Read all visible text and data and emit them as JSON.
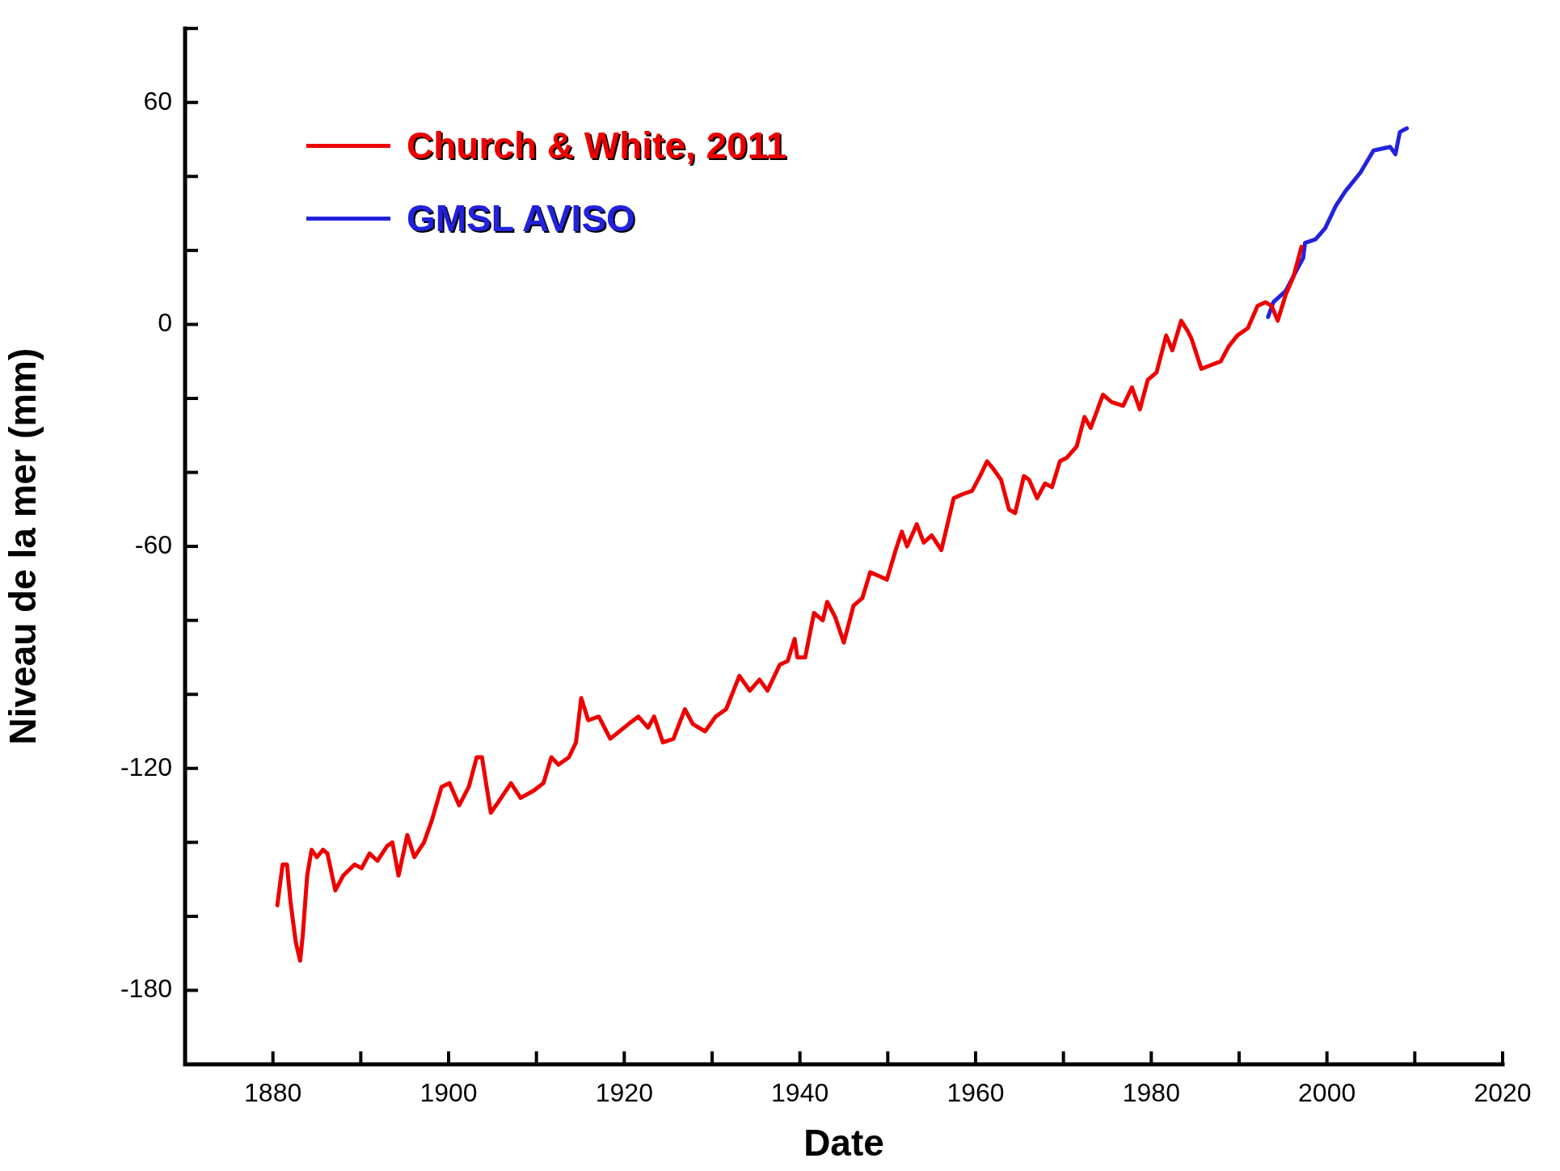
{
  "chart_data": {
    "type": "line",
    "xlabel": "Date",
    "ylabel": "Niveau de la mer (mm)",
    "legend": "top left",
    "marker": "none",
    "xlim": [
      1870,
      2020
    ],
    "ylim": [
      -200,
      80
    ],
    "xticks": [
      {
        "value": 1880,
        "label": "1880"
      },
      {
        "value": 1890,
        "label": null
      },
      {
        "value": 1900,
        "label": "1900"
      },
      {
        "value": 1910,
        "label": null
      },
      {
        "value": 1920,
        "label": "1920"
      },
      {
        "value": 1930,
        "label": null
      },
      {
        "value": 1940,
        "label": "1940"
      },
      {
        "value": 1950,
        "label": null
      },
      {
        "value": 1960,
        "label": "1960"
      },
      {
        "value": 1970,
        "label": null
      },
      {
        "value": 1980,
        "label": "1980"
      },
      {
        "value": 1990,
        "label": null
      },
      {
        "value": 2000,
        "label": "2000"
      },
      {
        "value": 2010,
        "label": null
      },
      {
        "value": 2020,
        "label": "2020"
      }
    ],
    "yticks": [
      {
        "value": -200,
        "label": null
      },
      {
        "value": -180,
        "label": "-180"
      },
      {
        "value": -160,
        "label": null
      },
      {
        "value": -140,
        "label": null
      },
      {
        "value": -120,
        "label": "-120"
      },
      {
        "value": -100,
        "label": null
      },
      {
        "value": -80,
        "label": null
      },
      {
        "value": -60,
        "label": "-60"
      },
      {
        "value": -40,
        "label": null
      },
      {
        "value": -20,
        "label": null
      },
      {
        "value": 0,
        "label": "0"
      },
      {
        "value": 20,
        "label": null
      },
      {
        "value": 40,
        "label": null
      },
      {
        "value": 60,
        "label": "60"
      },
      {
        "value": 80,
        "label": null
      }
    ],
    "series": [
      {
        "name": "Church & White, 2011",
        "color": "#ee0000",
        "x": [
          1880.5,
          1881.1,
          1881.6,
          1882.0,
          1882.6,
          1883.1,
          1883.4,
          1883.9,
          1884.4,
          1885.0,
          1885.7,
          1886.2,
          1887.1,
          1888.0,
          1889.3,
          1890.1,
          1891.0,
          1891.9,
          1893.0,
          1893.6,
          1894.3,
          1895.3,
          1896.1,
          1897.2,
          1898.1,
          1899.2,
          1900.1,
          1901.2,
          1902.3,
          1903.2,
          1903.8,
          1904.8,
          1905.7,
          1907.1,
          1908.2,
          1909.7,
          1910.8,
          1911.7,
          1912.5,
          1913.7,
          1914.5,
          1915.1,
          1915.9,
          1917.1,
          1918.4,
          1920.5,
          1921.6,
          1922.7,
          1923.4,
          1924.4,
          1925.6,
          1926.9,
          1927.8,
          1929.2,
          1930.4,
          1931.6,
          1933.1,
          1934.3,
          1935.4,
          1936.3,
          1937.7,
          1938.6,
          1939.4,
          1939.7,
          1940.6,
          1941.6,
          1942.6,
          1943.1,
          1944.0,
          1945.0,
          1946.1,
          1947.1,
          1948.0,
          1949.0,
          1949.9,
          1950.9,
          1951.6,
          1952.2,
          1953.3,
          1954.1,
          1955.0,
          1956.1,
          1957.5,
          1958.4,
          1959.6,
          1960.5,
          1961.3,
          1962.0,
          1962.9,
          1963.8,
          1964.5,
          1965.5,
          1966.1,
          1967.0,
          1967.9,
          1968.7,
          1969.6,
          1970.4,
          1971.5,
          1972.4,
          1973.1,
          1974.5,
          1975.5,
          1976.8,
          1977.8,
          1978.7,
          1979.6,
          1980.6,
          1981.7,
          1982.4,
          1983.4,
          1984.2,
          1984.6,
          1985.7,
          1986.8,
          1987.9,
          1988.8,
          1989.8,
          1991.0,
          1992.1,
          1993.0,
          1993.7,
          1994.4,
          1995.3,
          1996.2,
          1997.1
        ],
        "values": [
          -157,
          -146,
          -146,
          -156,
          -167,
          -172,
          -165,
          -149,
          -142,
          -144,
          -142,
          -143,
          -153,
          -149,
          -146,
          -147,
          -143,
          -145,
          -141,
          -140,
          -149,
          -138,
          -144,
          -140,
          -134,
          -125,
          -124,
          -130,
          -125,
          -117,
          -117,
          -132,
          -129,
          -124,
          -128,
          -126,
          -124,
          -117,
          -119,
          -117,
          -113,
          -101,
          -107,
          -106,
          -112,
          -108,
          -106,
          -109,
          -106,
          -113,
          -112,
          -104,
          -108,
          -110,
          -106,
          -104,
          -95,
          -99,
          -96,
          -99,
          -92,
          -91,
          -85,
          -90,
          -90,
          -78,
          -80,
          -75,
          -79,
          -86,
          -76,
          -74,
          -67,
          -68,
          -69,
          -61,
          -56,
          -60,
          -54,
          -59,
          -57,
          -61,
          -47,
          -46,
          -45,
          -41,
          -37,
          -39,
          -42,
          -50,
          -51,
          -41,
          -42,
          -47,
          -43,
          -44,
          -37,
          -36,
          -33,
          -25,
          -28,
          -19,
          -21,
          -22,
          -17,
          -23,
          -15,
          -13,
          -3,
          -7,
          1,
          -2,
          -4,
          -12,
          -11,
          -10,
          -6,
          -3,
          -1,
          5,
          6,
          5,
          1,
          8,
          13,
          21
        ]
      },
      {
        "name": "GMSL AVISO",
        "color": "#2222dd",
        "x": [
          1993.3,
          1993.9,
          1995.3,
          1996.4,
          1997.3,
          1997.5,
          1998.7,
          1999.8,
          2001.0,
          2002.1,
          2003.8,
          2005.3,
          2007.2,
          2007.8,
          2008.3,
          2009.1
        ],
        "values": [
          2,
          6,
          9,
          14,
          18,
          22,
          23,
          26,
          32,
          36,
          41,
          47,
          48,
          46,
          52,
          53
        ]
      }
    ]
  }
}
